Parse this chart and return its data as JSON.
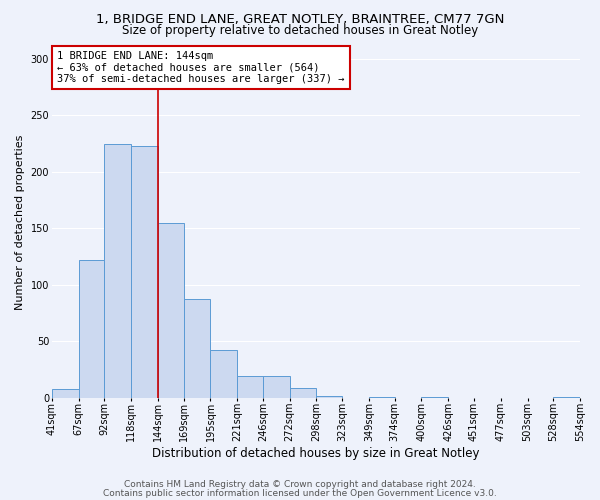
{
  "title1": "1, BRIDGE END LANE, GREAT NOTLEY, BRAINTREE, CM77 7GN",
  "title2": "Size of property relative to detached houses in Great Notley",
  "xlabel": "Distribution of detached houses by size in Great Notley",
  "ylabel": "Number of detached properties",
  "bin_edges": [
    41,
    67,
    92,
    118,
    144,
    169,
    195,
    221,
    246,
    272,
    298,
    323,
    349,
    374,
    400,
    426,
    451,
    477,
    503,
    528,
    554
  ],
  "bar_heights": [
    8,
    122,
    225,
    223,
    155,
    87,
    42,
    19,
    19,
    9,
    2,
    0,
    1,
    0,
    1,
    0,
    0,
    0,
    0,
    1
  ],
  "bar_color": "#ccd9f0",
  "bar_edge_color": "#5b9bd5",
  "vline_x": 144,
  "vline_color": "#cc0000",
  "annotation_text": "1 BRIDGE END LANE: 144sqm\n← 63% of detached houses are smaller (564)\n37% of semi-detached houses are larger (337) →",
  "annotation_box_facecolor": "#ffffff",
  "annotation_box_edgecolor": "#cc0000",
  "ylim": [
    0,
    310
  ],
  "yticks": [
    0,
    50,
    100,
    150,
    200,
    250,
    300
  ],
  "background_color": "#eef2fb",
  "grid_color": "#ffffff",
  "footer1": "Contains HM Land Registry data © Crown copyright and database right 2024.",
  "footer2": "Contains public sector information licensed under the Open Government Licence v3.0.",
  "title1_fontsize": 9.5,
  "title2_fontsize": 8.5,
  "xlabel_fontsize": 8.5,
  "ylabel_fontsize": 8,
  "tick_fontsize": 7,
  "annotation_fontsize": 7.5,
  "footer_fontsize": 6.5
}
